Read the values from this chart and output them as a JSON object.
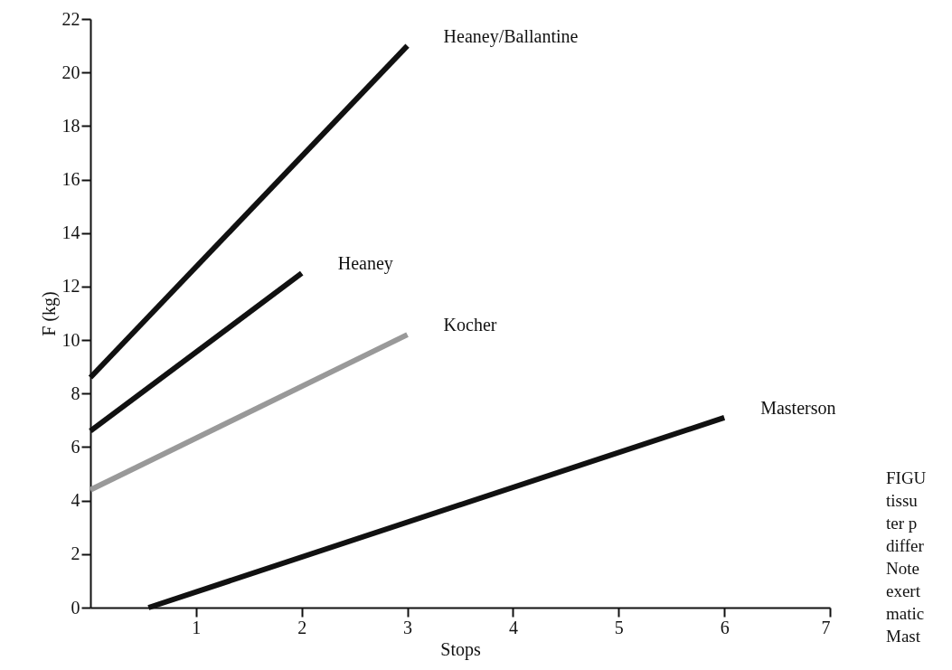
{
  "chart_data": {
    "type": "line",
    "xlabel": "Stops",
    "ylabel": "F (kg)",
    "xlim": [
      0,
      7
    ],
    "xticks": [
      1,
      2,
      3,
      4,
      5,
      6,
      7
    ],
    "ylim": [
      0,
      22
    ],
    "yticks": [
      0,
      2,
      4,
      6,
      8,
      10,
      12,
      14,
      16,
      18,
      20,
      22
    ],
    "grid": false,
    "legend": false,
    "marker": "none",
    "line_style": "solid",
    "series": [
      {
        "name": "Heaney/Ballantine",
        "color": "#111111",
        "x": [
          0,
          3
        ],
        "values": [
          8.6,
          21
        ]
      },
      {
        "name": "Heaney",
        "color": "#111111",
        "x": [
          0,
          2
        ],
        "values": [
          6.6,
          12.5
        ]
      },
      {
        "name": "Kocher",
        "color": "#999999",
        "x": [
          0,
          3
        ],
        "values": [
          4.4,
          10.2
        ]
      },
      {
        "name": "Masterson",
        "color": "#111111",
        "x": [
          0.55,
          6
        ],
        "values": [
          0,
          7.1
        ]
      }
    ],
    "annotations": [
      "FIGU",
      "tissu",
      "ter p",
      "differ",
      "Note",
      "exert",
      "matic",
      "Mast"
    ]
  }
}
